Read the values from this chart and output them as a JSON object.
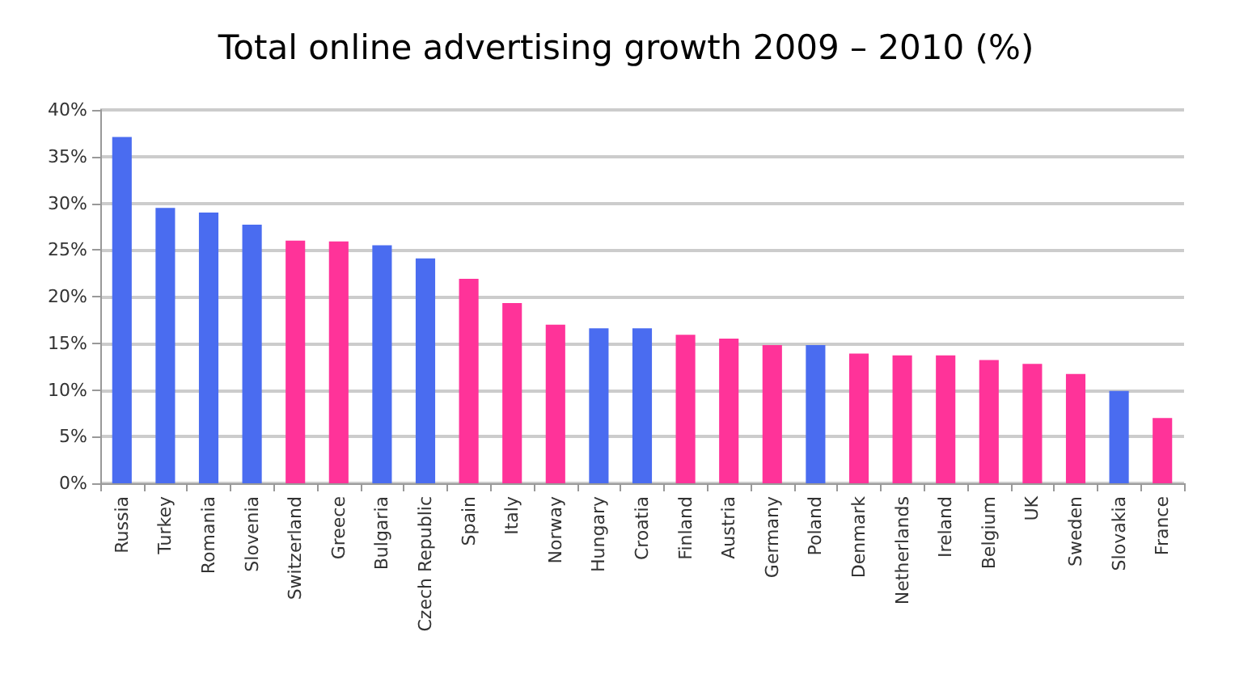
{
  "chart_data": {
    "type": "bar",
    "title": "Total online advertising growth 2009 – 2010 (%)",
    "categories": [
      "Russia",
      "Turkey",
      "Romania",
      "Slovenia",
      "Switzerland",
      "Greece",
      "Bulgaria",
      "Czech Republic",
      "Spain",
      "Italy",
      "Norway",
      "Hungary",
      "Croatia",
      "Finland",
      "Austria",
      "Germany",
      "Poland",
      "Denmark",
      "Netherlands",
      "Ireland",
      "Belgium",
      "UK",
      "Sweden",
      "Slovakia",
      "France"
    ],
    "values": [
      37.1,
      29.5,
      29.0,
      27.7,
      26.0,
      25.9,
      25.5,
      24.1,
      21.9,
      19.3,
      17.0,
      16.6,
      16.6,
      15.9,
      15.5,
      14.8,
      14.8,
      13.9,
      13.7,
      13.7,
      13.2,
      12.8,
      11.7,
      9.9,
      7.0
    ],
    "colors": [
      "#4a6cf0",
      "#4a6cf0",
      "#4a6cf0",
      "#4a6cf0",
      "#ff3399",
      "#ff3399",
      "#4a6cf0",
      "#4a6cf0",
      "#ff3399",
      "#ff3399",
      "#ff3399",
      "#4a6cf0",
      "#4a6cf0",
      "#ff3399",
      "#ff3399",
      "#ff3399",
      "#4a6cf0",
      "#ff3399",
      "#ff3399",
      "#ff3399",
      "#ff3399",
      "#ff3399",
      "#ff3399",
      "#4a6cf0",
      "#ff3399"
    ],
    "ylim": [
      0,
      40
    ],
    "yticks": [
      {
        "value": 0,
        "label": "0%"
      },
      {
        "value": 5,
        "label": "5%"
      },
      {
        "value": 10,
        "label": "10%"
      },
      {
        "value": 15,
        "label": "15%"
      },
      {
        "value": 20,
        "label": "20%"
      },
      {
        "value": 25,
        "label": "25%"
      },
      {
        "value": 30,
        "label": "30%"
      },
      {
        "value": 35,
        "label": "35%"
      },
      {
        "value": 40,
        "label": "40%"
      }
    ],
    "grid": "y"
  }
}
